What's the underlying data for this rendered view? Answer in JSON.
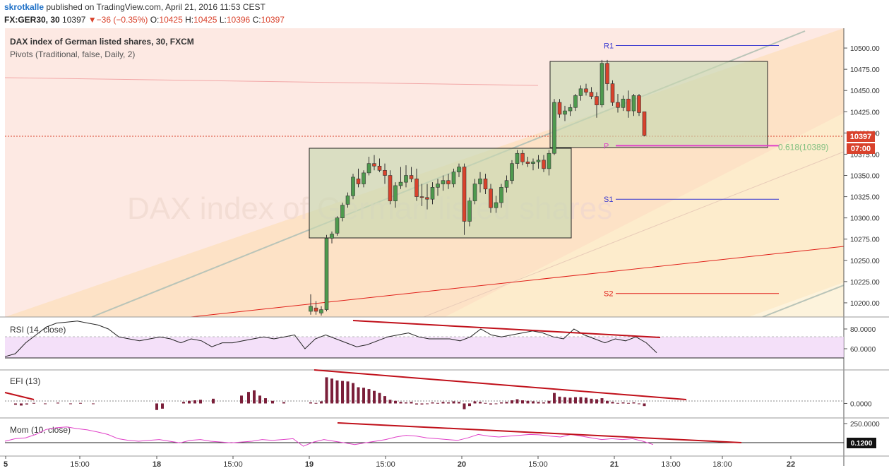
{
  "header": {
    "author": "skrotkalle",
    "published": " published on TradingView.com, April 21, 2016 11:53 CEST",
    "symbol": "FX:GER30, 30",
    "last": "10397",
    "change": "−36 (−0.35%)",
    "o_label": "O:",
    "o_val": "10425",
    "h_label": "H:",
    "h_val": "10425",
    "l_label": "L:",
    "l_val": "10396",
    "c_label": "C:",
    "c_val": "10397"
  },
  "legend": {
    "title": "DAX index of German listed shares, 30, FXCM",
    "pivots": "Pivots (Traditional, false, Daily, 2)",
    "watermark": "DAX index of German listed shares"
  },
  "colors": {
    "up": "#4e9a4e",
    "down": "#d9422c",
    "trend": "#e0201a",
    "rsi": "#222222",
    "efi": "#7b1f3a",
    "mom": "#e040c8",
    "pivot_p": "#e040c8"
  },
  "chart_data": [
    {
      "type": "candlestick",
      "title": "DAX index of German listed shares, 30, FXCM",
      "ylim": [
        10185,
        10520
      ],
      "y_ticks": [
        "10500.00",
        "10475.00",
        "10450.00",
        "10425.00",
        "10400.00",
        "10375.00",
        "10350.00",
        "10325.00",
        "10300.00",
        "10275.00",
        "10250.00",
        "10225.00",
        "10200.00"
      ],
      "last_price": "10397",
      "countdown": "07:00",
      "fib_label": "0.618(10389)",
      "pivots": [
        {
          "name": "R1",
          "value": 10503
        },
        {
          "name": "P",
          "value": 10385
        },
        {
          "name": "S1",
          "value": 10322
        },
        {
          "name": "S2",
          "value": 10211
        }
      ],
      "x_labels": [
        "5",
        "15:00",
        "18",
        "15:00",
        "19",
        "15:00",
        "20",
        "15:00",
        "21",
        "13:00",
        "18:00",
        "22"
      ],
      "candles": [
        {
          "o": 10190,
          "h": 10210,
          "l": 10186,
          "c": 10196
        },
        {
          "o": 10194,
          "h": 10202,
          "l": 10186,
          "c": 10190
        },
        {
          "o": 10188,
          "h": 10196,
          "l": 10185,
          "c": 10192
        },
        {
          "o": 10192,
          "h": 10280,
          "l": 10190,
          "c": 10276
        },
        {
          "o": 10276,
          "h": 10284,
          "l": 10270,
          "c": 10281
        },
        {
          "o": 10282,
          "h": 10302,
          "l": 10279,
          "c": 10300
        },
        {
          "o": 10300,
          "h": 10318,
          "l": 10296,
          "c": 10315
        },
        {
          "o": 10316,
          "h": 10330,
          "l": 10312,
          "c": 10326
        },
        {
          "o": 10326,
          "h": 10352,
          "l": 10322,
          "c": 10348
        },
        {
          "o": 10346,
          "h": 10358,
          "l": 10336,
          "c": 10340
        },
        {
          "o": 10340,
          "h": 10356,
          "l": 10336,
          "c": 10353
        },
        {
          "o": 10353,
          "h": 10372,
          "l": 10350,
          "c": 10364
        },
        {
          "o": 10364,
          "h": 10374,
          "l": 10356,
          "c": 10361
        },
        {
          "o": 10361,
          "h": 10370,
          "l": 10354,
          "c": 10356
        },
        {
          "o": 10356,
          "h": 10364,
          "l": 10340,
          "c": 10350
        },
        {
          "o": 10350,
          "h": 10356,
          "l": 10316,
          "c": 10320
        },
        {
          "o": 10320,
          "h": 10342,
          "l": 10312,
          "c": 10338
        },
        {
          "o": 10338,
          "h": 10360,
          "l": 10334,
          "c": 10342
        },
        {
          "o": 10342,
          "h": 10362,
          "l": 10336,
          "c": 10350
        },
        {
          "o": 10350,
          "h": 10360,
          "l": 10342,
          "c": 10346
        },
        {
          "o": 10346,
          "h": 10358,
          "l": 10320,
          "c": 10325
        },
        {
          "o": 10325,
          "h": 10340,
          "l": 10314,
          "c": 10324
        },
        {
          "o": 10324,
          "h": 10340,
          "l": 10310,
          "c": 10322
        },
        {
          "o": 10322,
          "h": 10342,
          "l": 10316,
          "c": 10336
        },
        {
          "o": 10336,
          "h": 10346,
          "l": 10326,
          "c": 10340
        },
        {
          "o": 10340,
          "h": 10350,
          "l": 10332,
          "c": 10344
        },
        {
          "o": 10344,
          "h": 10352,
          "l": 10334,
          "c": 10340
        },
        {
          "o": 10340,
          "h": 10358,
          "l": 10336,
          "c": 10354
        },
        {
          "o": 10354,
          "h": 10364,
          "l": 10348,
          "c": 10360
        },
        {
          "o": 10360,
          "h": 10364,
          "l": 10280,
          "c": 10296
        },
        {
          "o": 10296,
          "h": 10324,
          "l": 10290,
          "c": 10320
        },
        {
          "o": 10320,
          "h": 10346,
          "l": 10316,
          "c": 10340
        },
        {
          "o": 10340,
          "h": 10354,
          "l": 10330,
          "c": 10346
        },
        {
          "o": 10346,
          "h": 10352,
          "l": 10328,
          "c": 10334
        },
        {
          "o": 10334,
          "h": 10340,
          "l": 10306,
          "c": 10312
        },
        {
          "o": 10312,
          "h": 10326,
          "l": 10306,
          "c": 10318
        },
        {
          "o": 10318,
          "h": 10340,
          "l": 10312,
          "c": 10336
        },
        {
          "o": 10336,
          "h": 10350,
          "l": 10330,
          "c": 10344
        },
        {
          "o": 10344,
          "h": 10368,
          "l": 10340,
          "c": 10364
        },
        {
          "o": 10364,
          "h": 10380,
          "l": 10358,
          "c": 10376
        },
        {
          "o": 10376,
          "h": 10380,
          "l": 10362,
          "c": 10366
        },
        {
          "o": 10366,
          "h": 10372,
          "l": 10360,
          "c": 10364
        },
        {
          "o": 10364,
          "h": 10370,
          "l": 10356,
          "c": 10366
        },
        {
          "o": 10366,
          "h": 10374,
          "l": 10358,
          "c": 10368
        },
        {
          "o": 10368,
          "h": 10374,
          "l": 10354,
          "c": 10358
        },
        {
          "o": 10358,
          "h": 10380,
          "l": 10350,
          "c": 10376
        },
        {
          "o": 10376,
          "h": 10440,
          "l": 10374,
          "c": 10436
        },
        {
          "o": 10436,
          "h": 10440,
          "l": 10418,
          "c": 10422
        },
        {
          "o": 10422,
          "h": 10432,
          "l": 10414,
          "c": 10426
        },
        {
          "o": 10426,
          "h": 10434,
          "l": 10420,
          "c": 10430
        },
        {
          "o": 10430,
          "h": 10446,
          "l": 10426,
          "c": 10444
        },
        {
          "o": 10444,
          "h": 10456,
          "l": 10438,
          "c": 10452
        },
        {
          "o": 10452,
          "h": 10458,
          "l": 10444,
          "c": 10448
        },
        {
          "o": 10448,
          "h": 10454,
          "l": 10440,
          "c": 10443
        },
        {
          "o": 10443,
          "h": 10448,
          "l": 10418,
          "c": 10433
        },
        {
          "o": 10433,
          "h": 10486,
          "l": 10430,
          "c": 10482
        },
        {
          "o": 10482,
          "h": 10486,
          "l": 10450,
          "c": 10458
        },
        {
          "o": 10458,
          "h": 10462,
          "l": 10432,
          "c": 10436
        },
        {
          "o": 10436,
          "h": 10446,
          "l": 10424,
          "c": 10430
        },
        {
          "o": 10430,
          "h": 10444,
          "l": 10426,
          "c": 10440
        },
        {
          "o": 10440,
          "h": 10450,
          "l": 10418,
          "c": 10426
        },
        {
          "o": 10426,
          "h": 10446,
          "l": 10420,
          "c": 10444
        },
        {
          "o": 10444,
          "h": 10446,
          "l": 10420,
          "c": 10424
        },
        {
          "o": 10425,
          "h": 10425,
          "l": 10396,
          "c": 10397
        }
      ]
    },
    {
      "type": "line",
      "title": "RSI (14, close)",
      "ylim": [
        40,
        90
      ],
      "y_ticks": [
        "80.0000",
        "60.0000"
      ],
      "band": [
        50,
        70
      ],
      "values": [
        52,
        55,
        66,
        74,
        82,
        86,
        87,
        88,
        86,
        84,
        80,
        72,
        70,
        68,
        70,
        72,
        70,
        66,
        70,
        68,
        62,
        66,
        66,
        68,
        70,
        72,
        70,
        72,
        74,
        60,
        70,
        74,
        70,
        66,
        62,
        64,
        68,
        72,
        74,
        76,
        72,
        70,
        70,
        70,
        68,
        72,
        80,
        74,
        72,
        74,
        76,
        78,
        76,
        72,
        70,
        80,
        74,
        70,
        66,
        70,
        68,
        72,
        66,
        56
      ]
    },
    {
      "type": "bar",
      "title": "EFI (13)",
      "ylim": [
        -0.5,
        1.2
      ],
      "y_ticks": [
        "0.0000"
      ],
      "values": [
        0.04,
        0.02,
        0.08,
        1.0,
        0.95,
        0.88,
        0.86,
        0.84,
        0.78,
        0.62,
        0.6,
        0.55,
        0.48,
        0.4,
        0.28,
        0.14,
        0.1,
        0.06,
        0.04,
        0.06,
        -0.04,
        -0.04,
        -0.02,
        0.04,
        0.02,
        0.06,
        0.04,
        0.08,
        0.06,
        -0.22,
        -0.1,
        0.08,
        0.06,
        0.02,
        -0.04,
        -0.02,
        0.04,
        0.06,
        0.12,
        0.16,
        0.12,
        0.1,
        0.08,
        0.06,
        0.04,
        0.1,
        0.4,
        0.26,
        0.24,
        0.22,
        0.24,
        0.24,
        0.22,
        0.18,
        0.16,
        0.2,
        0.1,
        0.06,
        0.02,
        0.04,
        0.02,
        0.04,
        -0.02,
        -0.1
      ]
    },
    {
      "type": "line",
      "title": "Mom (10, close)",
      "ylim": [
        -120,
        300
      ],
      "y_ticks": [
        "250.0000"
      ],
      "last_value": "0.1200",
      "values": [
        40,
        70,
        80,
        120,
        180,
        200,
        210,
        190,
        175,
        150,
        120,
        70,
        50,
        40,
        50,
        60,
        40,
        20,
        50,
        60,
        40,
        30,
        20,
        30,
        40,
        60,
        50,
        60,
        70,
        -20,
        30,
        60,
        40,
        20,
        0,
        20,
        40,
        60,
        90,
        110,
        100,
        80,
        70,
        60,
        50,
        80,
        120,
        100,
        90,
        100,
        110,
        120,
        115,
        100,
        90,
        120,
        100,
        80,
        60,
        70,
        60,
        70,
        40,
        0
      ]
    }
  ]
}
